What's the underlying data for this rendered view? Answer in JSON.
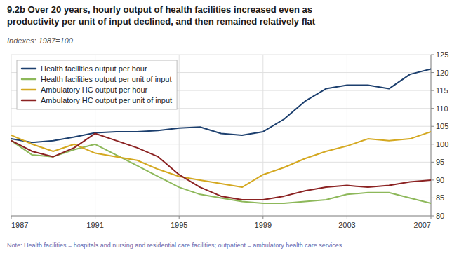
{
  "chart_data": {
    "type": "line",
    "title": "9.2b Over 20 years, hourly output of health facilities increased even as\nproductivity per unit of input declined, and then remained relatively flat",
    "subtitle": "Indexes: 1987=100",
    "annotations": [
      "Note: Health facilities = hospitals and nursing and residential care facilities; outpatient = ambulatory health care services."
    ],
    "x": [
      1987,
      1988,
      1989,
      1990,
      1991,
      1992,
      1993,
      1994,
      1995,
      1996,
      1997,
      1998,
      1999,
      2000,
      2001,
      2002,
      2003,
      2004,
      2005,
      2006,
      2007
    ],
    "series": [
      {
        "name": "Health facilities output per hour",
        "color": "#1c3f6e",
        "values": [
          101.5,
          100.5,
          101,
          102,
          103.2,
          103.5,
          103.5,
          103.8,
          104.5,
          104.8,
          103.0,
          102.5,
          103.5,
          107,
          112,
          115.5,
          116.5,
          116.5,
          115.5,
          119.5,
          121
        ]
      },
      {
        "name": "Health facilities output per unit of input",
        "color": "#8db85a",
        "values": [
          101,
          97,
          96.5,
          98.5,
          100,
          97,
          94,
          91,
          88,
          86,
          85,
          84,
          83.5,
          83.5,
          84,
          84.5,
          86,
          86.5,
          86.5,
          85,
          83.5
        ]
      },
      {
        "name": "Ambulatory HC output per hour",
        "color": "#d4a820",
        "values": [
          102.5,
          100,
          98,
          100,
          97.5,
          96.5,
          95.5,
          93,
          91,
          90,
          89,
          88,
          91.5,
          93.5,
          96,
          98,
          99.5,
          101.5,
          101,
          101.5,
          103.5
        ]
      },
      {
        "name": "Ambulatory HC output per unit of input",
        "color": "#8b2222",
        "values": [
          101,
          98,
          96.5,
          99,
          103,
          101,
          99,
          96.5,
          91.5,
          88,
          85.5,
          84.5,
          84.5,
          85.5,
          87,
          88,
          88.5,
          88,
          88.5,
          89.5,
          90
        ]
      }
    ],
    "xlim": [
      1987,
      2007
    ],
    "xticks": [
      1987,
      1991,
      1995,
      1999,
      2003,
      2007
    ],
    "ylim": [
      80,
      125
    ],
    "yticks": [
      80,
      85,
      90,
      95,
      100,
      105,
      110,
      115,
      120,
      125
    ],
    "grid": true,
    "legend": "upper left"
  }
}
